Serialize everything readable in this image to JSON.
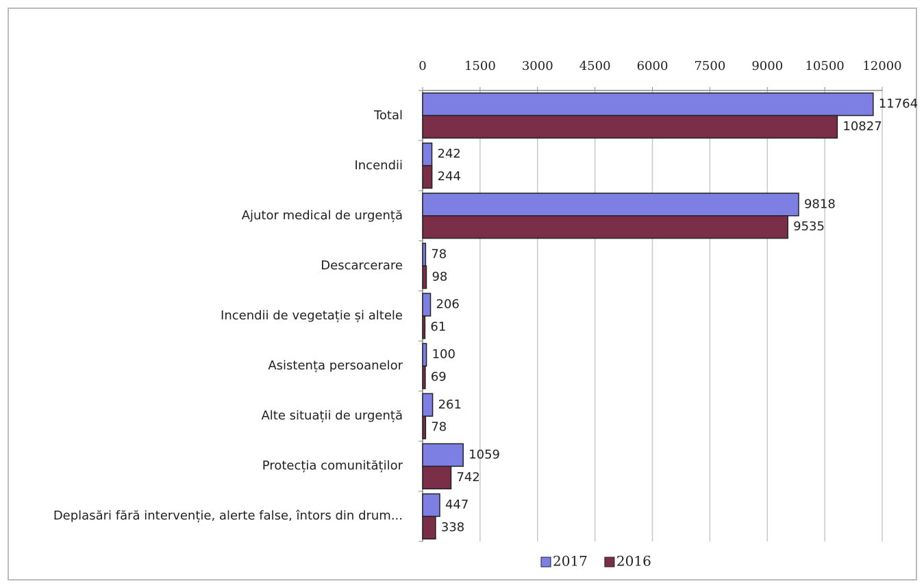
{
  "chart_data": {
    "type": "hbar",
    "categories": [
      "Total",
      "Incendii",
      "Ajutor medical de urgență",
      "Descarcerare",
      "Incendii de vegetație și altele",
      "Asistența persoanelor",
      "Alte situații de urgență",
      "Protecția comunităților",
      "Deplasări fără intervenție, alerte false, întors din drum..."
    ],
    "series": [
      {
        "name": "2017",
        "color": "#7d80e2",
        "values": [
          11764,
          242,
          9818,
          78,
          206,
          100,
          261,
          1059,
          447
        ]
      },
      {
        "name": "2016",
        "color": "#7b2e47",
        "values": [
          10827,
          244,
          9535,
          98,
          61,
          69,
          78,
          742,
          338
        ]
      }
    ],
    "xlim": [
      0,
      12000
    ],
    "xticks": [
      0,
      1500,
      3000,
      4500,
      6000,
      7500,
      9000,
      10500,
      12000
    ],
    "grid": true,
    "legend": "bottom"
  }
}
